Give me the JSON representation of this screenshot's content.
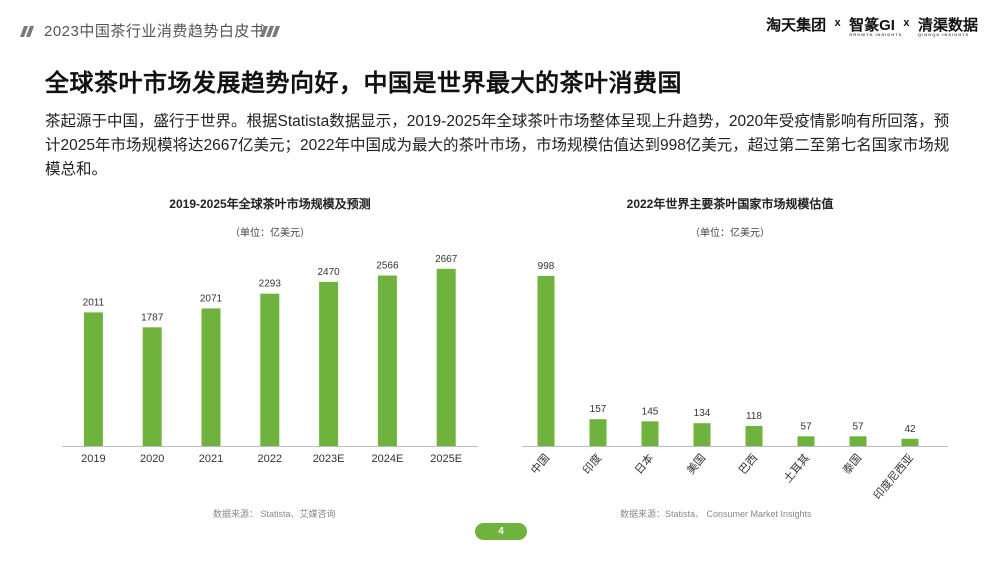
{
  "header": {
    "title": "2023中国茶行业消费趋势白皮书",
    "brand": {
      "part1": "淘天集团",
      "part2": "智篆GI",
      "part2_sub": "GROWTH INSIGHTS",
      "part3": "清渠数据",
      "part3_sub": "QINGQU INSIGHTS",
      "separator": "x"
    }
  },
  "headline": "全球茶叶市场发展趋势向好，中国是世界最大的茶叶消费国",
  "body_text": "茶起源于中国，盛行于世界。根据Statista数据显示，2019-2025年全球茶叶市场整体呈现上升趋势，2020年受疫情影响有所回落，预计2025年市场规模将达2667亿美元；2022年中国成为最大的茶叶市场，市场规模估值达到998亿美元，超过第二至第七名国家市场规模总和。",
  "colors": {
    "bar": "#6fb23d",
    "accent": "#6fb23d"
  },
  "chart_data": [
    {
      "type": "bar",
      "title": "2019-2025年全球茶叶市场规模及预测",
      "unit": "（单位：亿美元）",
      "categories": [
        "2019",
        "2020",
        "2021",
        "2022",
        "2023E",
        "2024E",
        "2025E"
      ],
      "values": [
        2011,
        1787,
        2071,
        2293,
        2470,
        2566,
        2667
      ],
      "ylim": [
        0,
        2800
      ],
      "grid": false,
      "source": "数据来源：  Statista、艾媒咨询"
    },
    {
      "type": "bar",
      "title": "2022年世界主要茶叶国家市场规模估值",
      "unit": "（单位：亿美元）",
      "categories": [
        "中国",
        "印度",
        "日本",
        "美国",
        "巴西",
        "土耳其",
        "泰国",
        "印度尼西亚"
      ],
      "values": [
        998,
        157,
        145,
        134,
        118,
        57,
        57,
        42
      ],
      "ylim": [
        0,
        1050
      ],
      "grid": false,
      "source": "数据来源：Statista、 Consumer Market Insights"
    }
  ],
  "page_number": "4"
}
